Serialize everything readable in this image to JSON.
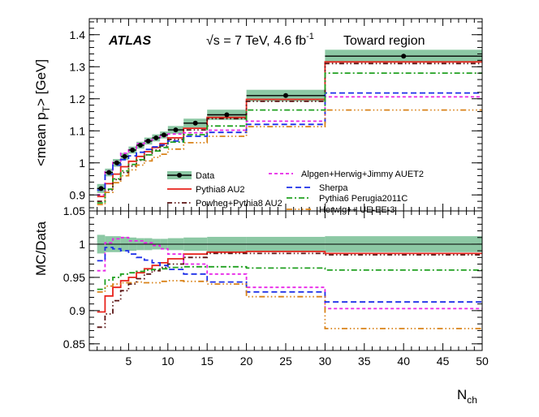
{
  "chart_data": {
    "type": "line",
    "title": "",
    "experiment_label": "ATLAS",
    "energy_label": "√s = 7 TeV, 4.6 fb",
    "energy_superscript": "-1",
    "region_label": "Toward region",
    "xlabel": "N",
    "xlabel_sub": "ch",
    "xlim": [
      0,
      50
    ],
    "x_ticks": [
      5,
      10,
      15,
      20,
      25,
      30,
      35,
      40,
      45,
      50
    ],
    "x_edges": [
      1,
      2,
      3,
      4,
      5,
      6,
      7,
      8,
      9,
      10,
      12,
      15,
      20,
      30,
      50
    ],
    "top_panel": {
      "ylabel": "<mean p",
      "ylabel_sub": "T",
      "ylabel_suffix": "> [GeV]",
      "ylim": [
        0.85,
        1.45
      ],
      "y_ticks": [
        0.9,
        1,
        1.1,
        1.2,
        1.3,
        1.4
      ],
      "y_tick_labels": [
        "0.9",
        "1",
        "1.1",
        "1.2",
        "1.3",
        "1.4"
      ],
      "data_points": {
        "x": [
          1.5,
          2.5,
          3.5,
          4.5,
          5.5,
          6.5,
          7.5,
          8.5,
          9.5,
          11,
          13.5,
          17.5,
          25,
          40
        ],
        "y": [
          0.92,
          0.97,
          1.0,
          1.02,
          1.04,
          1.055,
          1.068,
          1.078,
          1.087,
          1.103,
          1.124,
          1.15,
          1.21,
          1.333
        ],
        "band_half_width": [
          0.014,
          0.012,
          0.012,
          0.011,
          0.011,
          0.011,
          0.011,
          0.011,
          0.011,
          0.012,
          0.014,
          0.016,
          0.018,
          0.02
        ]
      },
      "series": [
        {
          "name": "Pythia8 AU2",
          "color": "#e8231c",
          "dash": "",
          "values": [
            0.895,
            0.935,
            0.965,
            0.988,
            1.005,
            1.02,
            1.035,
            1.048,
            1.06,
            1.078,
            1.108,
            1.142,
            1.198,
            1.315
          ]
        },
        {
          "name": "Powheg+Pythia8 AU2",
          "color": "#5a1212",
          "dash": "6,3,1.5,3,1.5,3",
          "values": [
            0.88,
            0.915,
            0.948,
            0.97,
            0.99,
            1.008,
            1.025,
            1.04,
            1.053,
            1.073,
            1.103,
            1.138,
            1.192,
            1.31
          ]
        },
        {
          "name": "Alpgen+Herwig+Jimmy AUET2",
          "color": "#e826e8",
          "dash": "4,3",
          "values": [
            0.9,
            0.975,
            1.005,
            1.03,
            1.045,
            1.06,
            1.07,
            1.078,
            1.083,
            1.09,
            1.094,
            1.102,
            1.13,
            1.206
          ]
        },
        {
          "name": "Sherpa",
          "color": "#1c2ee8",
          "dash": "7,4",
          "values": [
            0.915,
            0.965,
            0.993,
            1.01,
            1.022,
            1.033,
            1.042,
            1.05,
            1.056,
            1.068,
            1.083,
            1.095,
            1.12,
            1.218
          ]
        },
        {
          "name": "Pythia6 Perugia2011C",
          "color": "#20a020",
          "dash": "7,3,2,3",
          "values": [
            0.875,
            0.918,
            0.95,
            0.975,
            0.995,
            1.01,
            1.025,
            1.037,
            1.048,
            1.065,
            1.088,
            1.115,
            1.165,
            1.28
          ]
        },
        {
          "name": "Herwig++ UE-EE-3",
          "color": "#d98218",
          "dash": "7,3,1.5,3,1.5,3,1.5,3",
          "values": [
            0.87,
            0.908,
            0.938,
            0.96,
            0.978,
            0.993,
            1.006,
            1.017,
            1.027,
            1.043,
            1.063,
            1.083,
            1.113,
            1.165
          ]
        }
      ]
    },
    "bottom_panel": {
      "ylabel": "MC/Data",
      "ylim": [
        0.84,
        1.05
      ],
      "y_ticks": [
        0.85,
        0.9,
        0.95,
        1,
        1.05
      ],
      "y_tick_labels": [
        "0.85",
        "0.9",
        "0.95",
        "1",
        "1.05"
      ],
      "band_half_width": [
        0.014,
        0.012,
        0.012,
        0.011,
        0.01,
        0.009,
        0.009,
        0.008,
        0.008,
        0.009,
        0.01,
        0.011,
        0.011,
        0.012
      ],
      "series": [
        {
          "name": "Pythia8 AU2",
          "values": [
            0.898,
            0.922,
            0.935,
            0.945,
            0.95,
            0.957,
            0.963,
            0.968,
            0.972,
            0.978,
            0.985,
            0.988,
            0.989,
            0.986
          ]
        },
        {
          "name": "Powheg+Pythia8 AU2",
          "values": [
            0.875,
            0.895,
            0.915,
            0.93,
            0.94,
            0.948,
            0.955,
            0.96,
            0.965,
            0.97,
            0.98,
            0.986,
            0.986,
            0.984
          ]
        },
        {
          "name": "Alpgen+Herwig+Jimmy AUET2",
          "values": [
            0.96,
            1.002,
            1.008,
            1.01,
            1.005,
            1.005,
            1.002,
            0.998,
            0.993,
            0.985,
            0.97,
            0.955,
            0.935,
            0.903
          ]
        },
        {
          "name": "Sherpa",
          "values": [
            0.975,
            0.995,
            0.993,
            0.99,
            0.985,
            0.98,
            0.976,
            0.972,
            0.968,
            0.962,
            0.955,
            0.943,
            0.928,
            0.913
          ]
        },
        {
          "name": "Pythia6 Perugia2011C",
          "values": [
            0.932,
            0.946,
            0.95,
            0.955,
            0.957,
            0.959,
            0.961,
            0.962,
            0.963,
            0.965,
            0.966,
            0.966,
            0.964,
            0.961
          ]
        },
        {
          "name": "Herwig++ UE-EE-3",
          "values": [
            0.928,
            0.937,
            0.94,
            0.942,
            0.942,
            0.943,
            0.942,
            0.942,
            0.944,
            0.945,
            0.944,
            0.94,
            0.921,
            0.873
          ]
        }
      ]
    },
    "legend": {
      "data_label": "Data",
      "entries": [
        "Pythia8 AU2",
        "Powheg+Pythia8 AU2",
        "Alpgen+Herwig+Jimmy AUET2",
        "Sherpa",
        "Pythia6 Perugia2011C",
        "Herwig++ UE-EE-3"
      ]
    },
    "colors": {
      "band": "#8cc8a4",
      "data_marker": "#000000",
      "axis": "#000000"
    }
  }
}
